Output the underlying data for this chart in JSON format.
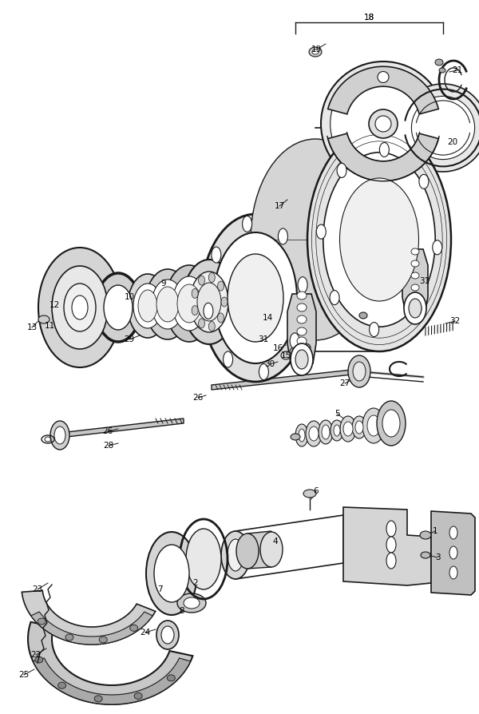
{
  "bg_color": "#ffffff",
  "lc": "#1a1a1a",
  "lw": 1.0,
  "fs": 7.5,
  "figsize": [
    6.0,
    8.94
  ],
  "dpi": 100
}
